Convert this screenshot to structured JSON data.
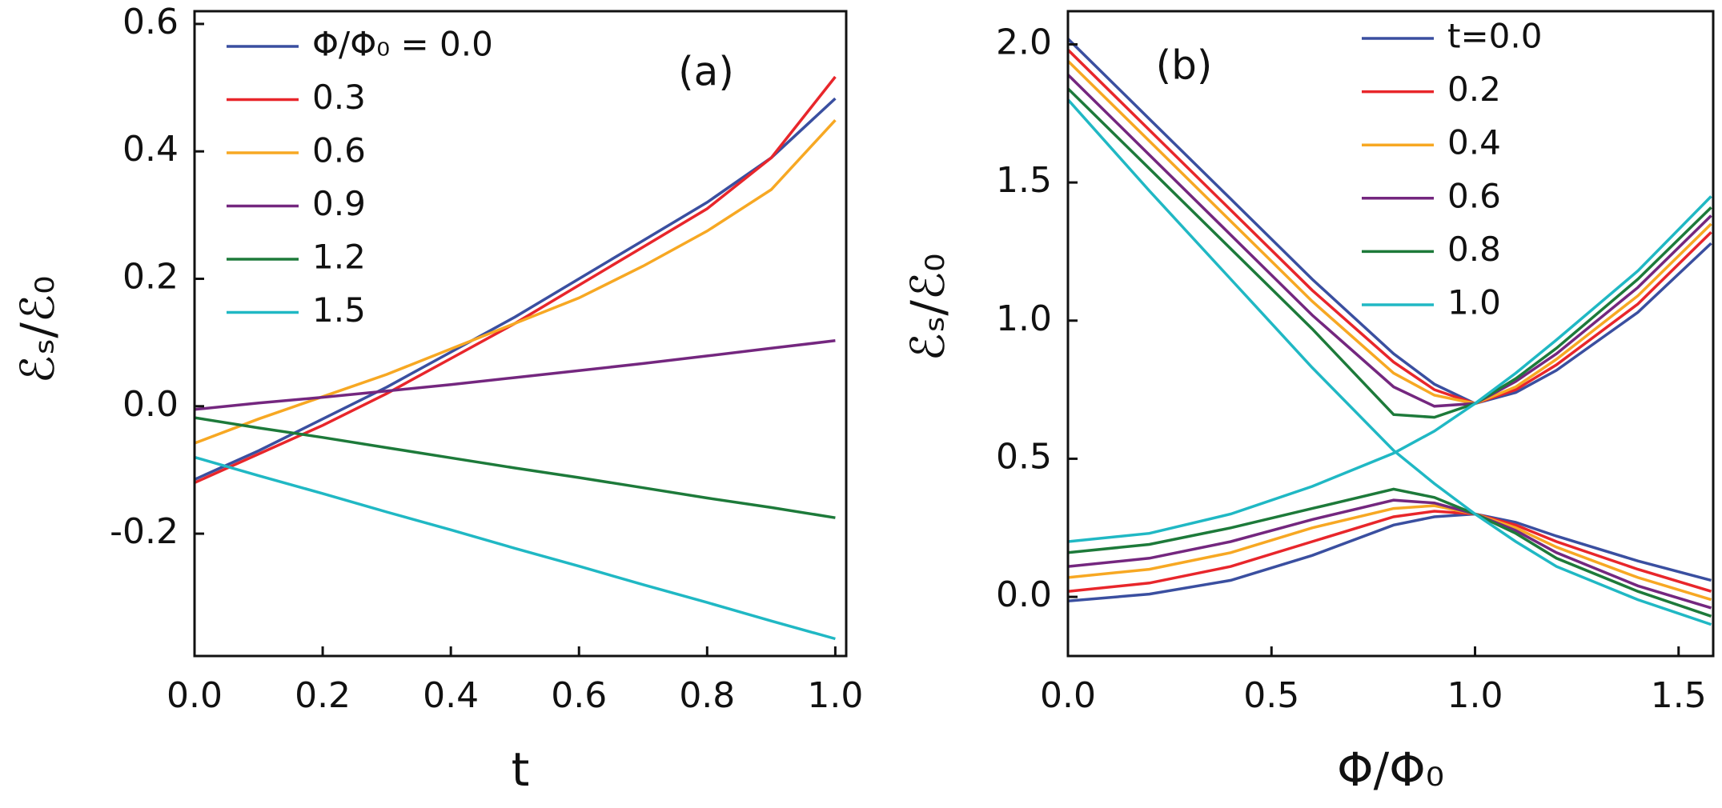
{
  "chart_data": [
    {
      "type": "line",
      "panel_label": "(a)",
      "xlabel": "t",
      "ylabel": "ℰₛ/ℰ₀",
      "x": [
        0,
        0.1,
        0.2,
        0.3,
        0.4,
        0.5,
        0.6,
        0.7,
        0.8,
        0.9,
        1.0
      ],
      "xlim": [
        0,
        1.017
      ],
      "ylim": [
        -0.392,
        0.62
      ],
      "xticks": [
        {
          "value": 0,
          "label": "0.0"
        },
        0.2,
        0.4,
        0.6,
        0.8,
        {
          "value": 1,
          "label": "1.0"
        }
      ],
      "yticks": [
        0.6,
        0.4,
        0.2,
        {
          "value": 0,
          "label": "0.0"
        },
        -0.2
      ],
      "legend": "upper left",
      "series": [
        {
          "name": "Φ/Φ₀ = 0.0",
          "color": "#3a4fa0",
          "values": [
            -0.115,
            -0.07,
            -0.02,
            0.03,
            0.085,
            0.14,
            0.2,
            0.26,
            0.32,
            0.39,
            0.483
          ]
        },
        {
          "name": "0.3",
          "color": "#e8262b",
          "values": [
            -0.12,
            -0.075,
            -0.03,
            0.02,
            0.075,
            0.13,
            0.19,
            0.25,
            0.31,
            0.39,
            0.517
          ]
        },
        {
          "name": "0.6",
          "color": "#f7a823",
          "values": [
            -0.058,
            -0.02,
            0.015,
            0.05,
            0.09,
            0.13,
            0.17,
            0.22,
            0.275,
            0.34,
            0.449
          ]
        },
        {
          "name": "0.9",
          "color": "#74277f",
          "values": [
            -0.005,
            0.005,
            0.014,
            0.024,
            0.034,
            0.045,
            0.056,
            0.067,
            0.079,
            0.091,
            0.103
          ]
        },
        {
          "name": "1.2",
          "color": "#1d7a3a",
          "values": [
            -0.018,
            -0.034,
            -0.049,
            -0.065,
            -0.081,
            -0.097,
            -0.112,
            -0.128,
            -0.144,
            -0.159,
            -0.175
          ]
        },
        {
          "name": "1.5",
          "color": "#20b8c4",
          "values": [
            -0.08,
            -0.109,
            -0.137,
            -0.166,
            -0.194,
            -0.223,
            -0.251,
            -0.28,
            -0.308,
            -0.337,
            -0.365
          ]
        }
      ]
    },
    {
      "type": "line",
      "panel_label": "(b)",
      "xlabel": "Φ/Φ₀",
      "ylabel": "ℰₛ/ℰ₀",
      "x": [
        0,
        0.2,
        0.4,
        0.6,
        0.8,
        0.9,
        1.0,
        1.1,
        1.2,
        1.4,
        1.58
      ],
      "xlim": [
        0,
        1.585
      ],
      "ylim": [
        -0.214,
        2.12
      ],
      "xticks": [
        {
          "value": 0,
          "label": "0.0"
        },
        0.5,
        {
          "value": 1,
          "label": "1.0"
        },
        1.5
      ],
      "yticks": [
        {
          "value": 2,
          "label": "2.0"
        },
        1.5,
        {
          "value": 1,
          "label": "1.0"
        },
        0.5,
        {
          "value": 0,
          "label": "0.0"
        }
      ],
      "legend": "upper right",
      "series": [
        {
          "name": "t=0.0",
          "color": "#3a4fa0",
          "values": [
            2.02,
            1.73,
            1.44,
            1.15,
            0.88,
            0.77,
            0.7,
            0.74,
            0.82,
            1.03,
            1.28
          ],
          "values_lower": [
            -0.015,
            0.01,
            0.06,
            0.15,
            0.26,
            0.29,
            0.3,
            0.27,
            0.22,
            0.13,
            0.06
          ]
        },
        {
          "name": "0.2",
          "color": "#e8262b",
          "values": [
            1.98,
            1.69,
            1.4,
            1.11,
            0.85,
            0.75,
            0.7,
            0.75,
            0.84,
            1.06,
            1.32
          ],
          "values_lower": [
            0.02,
            0.05,
            0.11,
            0.2,
            0.29,
            0.31,
            0.3,
            0.26,
            0.2,
            0.1,
            0.02
          ]
        },
        {
          "name": "0.4",
          "color": "#f7a823",
          "values": [
            1.94,
            1.65,
            1.36,
            1.07,
            0.81,
            0.73,
            0.7,
            0.76,
            0.86,
            1.09,
            1.35
          ],
          "values_lower": [
            0.07,
            0.1,
            0.16,
            0.25,
            0.32,
            0.33,
            0.3,
            0.25,
            0.18,
            0.07,
            -0.01
          ]
        },
        {
          "name": "0.6",
          "color": "#74277f",
          "values": [
            1.89,
            1.6,
            1.31,
            1.02,
            0.76,
            0.69,
            0.7,
            0.78,
            0.88,
            1.12,
            1.38
          ],
          "values_lower": [
            0.11,
            0.14,
            0.2,
            0.28,
            0.35,
            0.34,
            0.3,
            0.24,
            0.16,
            0.04,
            -0.04
          ]
        },
        {
          "name": "0.8",
          "color": "#1d7a3a",
          "values": [
            1.84,
            1.55,
            1.26,
            0.97,
            0.66,
            0.65,
            0.7,
            0.79,
            0.9,
            1.15,
            1.41
          ],
          "values_lower": [
            0.16,
            0.19,
            0.25,
            0.32,
            0.39,
            0.36,
            0.3,
            0.23,
            0.14,
            0.02,
            -0.07
          ]
        },
        {
          "name": "1.0",
          "color": "#20b8c4",
          "values": [
            1.8,
            1.47,
            1.15,
            0.83,
            0.53,
            0.41,
            0.3,
            0.2,
            0.11,
            -0.01,
            -0.1
          ],
          "values_lower": [
            0.2,
            0.23,
            0.3,
            0.4,
            0.52,
            0.6,
            0.7,
            0.81,
            0.93,
            1.18,
            1.45
          ]
        }
      ]
    }
  ]
}
